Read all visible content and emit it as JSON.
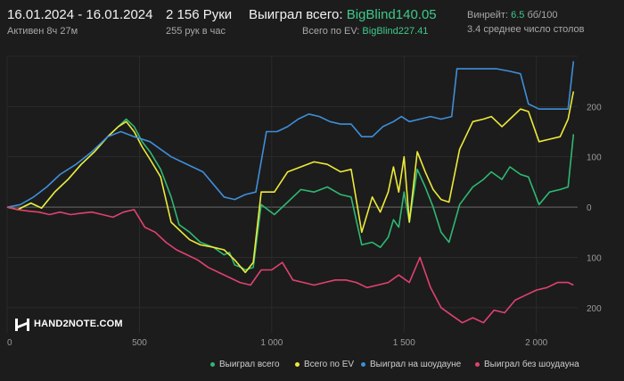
{
  "header": {
    "date_range": "16.01.2024 - 16.01.2024",
    "active_time": "Активен 8ч 27м",
    "hands_count": "2 156 Руки",
    "hands_per_hour": "255 рук в час",
    "won_total_label": "Выиграл всего:",
    "won_total_value": "BigBlind140.05",
    "ev_total_label": "Всего по EV:",
    "ev_total_value": "BigBlind227.41",
    "winrate_label": "Винрейт:",
    "winrate_value": "6.5",
    "winrate_unit": "бб/100",
    "avg_tables": "3.4 среднее число столов"
  },
  "logo_text": "HAND2NOTE.COM",
  "colors": {
    "background": "#1c1c1c",
    "accent_green": "#3ec98a",
    "gridline": "#2e2e2e",
    "zeroline": "#6a6a6a"
  },
  "chart_data": {
    "type": "line",
    "xlim": [
      0,
      2156
    ],
    "ylim": [
      -250,
      300
    ],
    "x_ticks": [
      0,
      500,
      1000,
      1500,
      2000
    ],
    "x_tick_labels": [
      "0",
      "500",
      "1 000",
      "1 500",
      "2 000"
    ],
    "y_ticks": [
      200,
      100,
      0,
      -100,
      -200
    ],
    "y_tick_labels": [
      "200",
      "100",
      "0",
      "100",
      "200"
    ],
    "grid": true,
    "legend_position": "bottom",
    "series": [
      {
        "name": "Выиграл всего",
        "color": "#2fb872",
        "points": [
          [
            0,
            0
          ],
          [
            40,
            -5
          ],
          [
            90,
            8
          ],
          [
            130,
            -2
          ],
          [
            180,
            30
          ],
          [
            230,
            55
          ],
          [
            280,
            85
          ],
          [
            330,
            110
          ],
          [
            380,
            140
          ],
          [
            420,
            160
          ],
          [
            450,
            175
          ],
          [
            480,
            160
          ],
          [
            510,
            130
          ],
          [
            540,
            110
          ],
          [
            580,
            75
          ],
          [
            620,
            20
          ],
          [
            650,
            -35
          ],
          [
            690,
            -50
          ],
          [
            730,
            -70
          ],
          [
            780,
            -80
          ],
          [
            820,
            -95
          ],
          [
            840,
            -90
          ],
          [
            860,
            -115
          ],
          [
            885,
            -120
          ],
          [
            900,
            -125
          ],
          [
            930,
            -120
          ],
          [
            960,
            5
          ],
          [
            1010,
            -15
          ],
          [
            1060,
            10
          ],
          [
            1110,
            35
          ],
          [
            1160,
            30
          ],
          [
            1210,
            40
          ],
          [
            1260,
            25
          ],
          [
            1300,
            20
          ],
          [
            1340,
            -75
          ],
          [
            1380,
            -70
          ],
          [
            1410,
            -80
          ],
          [
            1440,
            -60
          ],
          [
            1460,
            -25
          ],
          [
            1480,
            -40
          ],
          [
            1500,
            30
          ],
          [
            1520,
            -30
          ],
          [
            1550,
            75
          ],
          [
            1580,
            40
          ],
          [
            1610,
            0
          ],
          [
            1640,
            -50
          ],
          [
            1670,
            -70
          ],
          [
            1710,
            5
          ],
          [
            1760,
            40
          ],
          [
            1800,
            55
          ],
          [
            1830,
            70
          ],
          [
            1870,
            55
          ],
          [
            1900,
            80
          ],
          [
            1940,
            65
          ],
          [
            1970,
            60
          ],
          [
            2010,
            5
          ],
          [
            2050,
            30
          ],
          [
            2090,
            35
          ],
          [
            2120,
            40
          ],
          [
            2140,
            145
          ]
        ]
      },
      {
        "name": "Всего по EV",
        "color": "#ecea3a",
        "points": [
          [
            0,
            0
          ],
          [
            40,
            -5
          ],
          [
            90,
            8
          ],
          [
            130,
            -2
          ],
          [
            180,
            30
          ],
          [
            230,
            55
          ],
          [
            280,
            85
          ],
          [
            330,
            110
          ],
          [
            380,
            140
          ],
          [
            420,
            160
          ],
          [
            450,
            170
          ],
          [
            480,
            150
          ],
          [
            510,
            120
          ],
          [
            540,
            95
          ],
          [
            580,
            60
          ],
          [
            620,
            -30
          ],
          [
            650,
            -45
          ],
          [
            690,
            -65
          ],
          [
            730,
            -75
          ],
          [
            780,
            -80
          ],
          [
            820,
            -85
          ],
          [
            860,
            -105
          ],
          [
            900,
            -130
          ],
          [
            930,
            -110
          ],
          [
            960,
            30
          ],
          [
            1010,
            30
          ],
          [
            1060,
            70
          ],
          [
            1110,
            80
          ],
          [
            1160,
            90
          ],
          [
            1210,
            85
          ],
          [
            1260,
            70
          ],
          [
            1300,
            75
          ],
          [
            1340,
            -50
          ],
          [
            1380,
            20
          ],
          [
            1410,
            -10
          ],
          [
            1440,
            30
          ],
          [
            1460,
            80
          ],
          [
            1480,
            30
          ],
          [
            1500,
            100
          ],
          [
            1520,
            -30
          ],
          [
            1550,
            110
          ],
          [
            1580,
            70
          ],
          [
            1610,
            35
          ],
          [
            1640,
            15
          ],
          [
            1670,
            10
          ],
          [
            1710,
            115
          ],
          [
            1760,
            170
          ],
          [
            1800,
            175
          ],
          [
            1830,
            180
          ],
          [
            1870,
            160
          ],
          [
            1900,
            175
          ],
          [
            1940,
            195
          ],
          [
            1970,
            190
          ],
          [
            2010,
            130
          ],
          [
            2050,
            135
          ],
          [
            2090,
            140
          ],
          [
            2120,
            175
          ],
          [
            2140,
            230
          ]
        ]
      },
      {
        "name": "Выиграл на шоудауне",
        "color": "#3f8ed8",
        "points": [
          [
            0,
            0
          ],
          [
            50,
            5
          ],
          [
            100,
            20
          ],
          [
            150,
            40
          ],
          [
            200,
            65
          ],
          [
            260,
            85
          ],
          [
            320,
            110
          ],
          [
            380,
            140
          ],
          [
            430,
            150
          ],
          [
            480,
            140
          ],
          [
            540,
            130
          ],
          [
            580,
            115
          ],
          [
            620,
            100
          ],
          [
            660,
            90
          ],
          [
            700,
            80
          ],
          [
            740,
            70
          ],
          [
            780,
            45
          ],
          [
            820,
            20
          ],
          [
            860,
            15
          ],
          [
            900,
            25
          ],
          [
            940,
            30
          ],
          [
            980,
            150
          ],
          [
            1020,
            150
          ],
          [
            1060,
            160
          ],
          [
            1100,
            175
          ],
          [
            1140,
            185
          ],
          [
            1180,
            180
          ],
          [
            1220,
            170
          ],
          [
            1260,
            165
          ],
          [
            1300,
            165
          ],
          [
            1340,
            140
          ],
          [
            1380,
            140
          ],
          [
            1420,
            160
          ],
          [
            1460,
            170
          ],
          [
            1490,
            180
          ],
          [
            1520,
            170
          ],
          [
            1560,
            175
          ],
          [
            1600,
            180
          ],
          [
            1640,
            175
          ],
          [
            1680,
            180
          ],
          [
            1700,
            275
          ],
          [
            1750,
            275
          ],
          [
            1800,
            275
          ],
          [
            1850,
            275
          ],
          [
            1900,
            270
          ],
          [
            1940,
            265
          ],
          [
            1970,
            205
          ],
          [
            2010,
            195
          ],
          [
            2050,
            195
          ],
          [
            2090,
            195
          ],
          [
            2120,
            195
          ],
          [
            2140,
            290
          ]
        ]
      },
      {
        "name": "Выиграл без шоудауна",
        "color": "#e0426e",
        "points": [
          [
            0,
            0
          ],
          [
            40,
            -5
          ],
          [
            80,
            -8
          ],
          [
            120,
            -10
          ],
          [
            160,
            -15
          ],
          [
            200,
            -10
          ],
          [
            240,
            -15
          ],
          [
            280,
            -12
          ],
          [
            320,
            -10
          ],
          [
            360,
            -15
          ],
          [
            400,
            -20
          ],
          [
            440,
            -10
          ],
          [
            480,
            -5
          ],
          [
            520,
            -40
          ],
          [
            560,
            -50
          ],
          [
            600,
            -70
          ],
          [
            640,
            -85
          ],
          [
            680,
            -95
          ],
          [
            720,
            -105
          ],
          [
            760,
            -120
          ],
          [
            800,
            -130
          ],
          [
            840,
            -140
          ],
          [
            880,
            -150
          ],
          [
            920,
            -155
          ],
          [
            960,
            -125
          ],
          [
            1000,
            -125
          ],
          [
            1040,
            -110
          ],
          [
            1080,
            -145
          ],
          [
            1120,
            -150
          ],
          [
            1160,
            -155
          ],
          [
            1200,
            -150
          ],
          [
            1240,
            -145
          ],
          [
            1280,
            -145
          ],
          [
            1320,
            -150
          ],
          [
            1360,
            -160
          ],
          [
            1400,
            -155
          ],
          [
            1440,
            -150
          ],
          [
            1480,
            -135
          ],
          [
            1520,
            -150
          ],
          [
            1560,
            -100
          ],
          [
            1600,
            -160
          ],
          [
            1640,
            -200
          ],
          [
            1680,
            -215
          ],
          [
            1720,
            -230
          ],
          [
            1760,
            -220
          ],
          [
            1800,
            -230
          ],
          [
            1840,
            -205
          ],
          [
            1880,
            -210
          ],
          [
            1920,
            -185
          ],
          [
            1960,
            -175
          ],
          [
            2000,
            -165
          ],
          [
            2040,
            -160
          ],
          [
            2080,
            -150
          ],
          [
            2120,
            -150
          ],
          [
            2140,
            -155
          ]
        ]
      }
    ]
  }
}
